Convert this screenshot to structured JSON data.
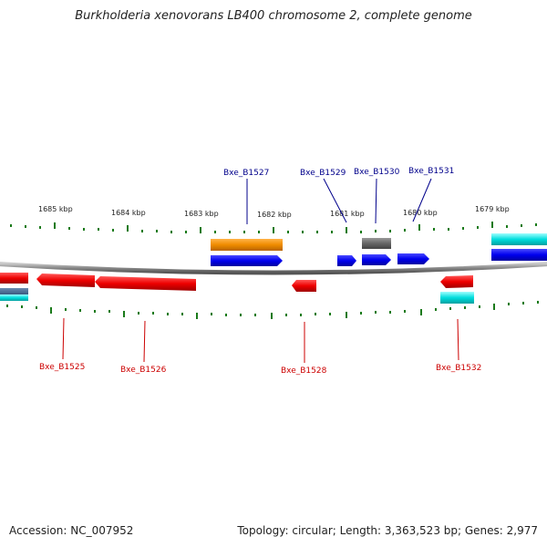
{
  "title": "Burkholderia xenovorans LB400 chromosome 2, complete genome",
  "accession": "Accession: NC_007952",
  "summary": "Topology: circular; Length: 3,363,523 bp; Genes: 2,977",
  "scale_labels": [
    "1685 kbp",
    "1684 kbp",
    "1683 kbp",
    "1682 kbp",
    "1681 kbp",
    "1680 kbp",
    "1679 kbp"
  ],
  "genes_top": [
    "Bxe_B1527",
    "Bxe_B1529",
    "Bxe_B1530",
    "Bxe_B1531"
  ],
  "genes_bottom": [
    "Bxe_B1525",
    "Bxe_B1526",
    "Bxe_B1528",
    "Bxe_B1532"
  ],
  "colors": {
    "forward_cds": "#0000ee",
    "reverse_cds": "#ee0000",
    "orange_track": "#f08c00",
    "cyan_track": "#00dddd",
    "gray_track": "#666666",
    "tick": "#1a7a1a",
    "forward_label": "#00008b",
    "reverse_label": "#cc0000"
  }
}
